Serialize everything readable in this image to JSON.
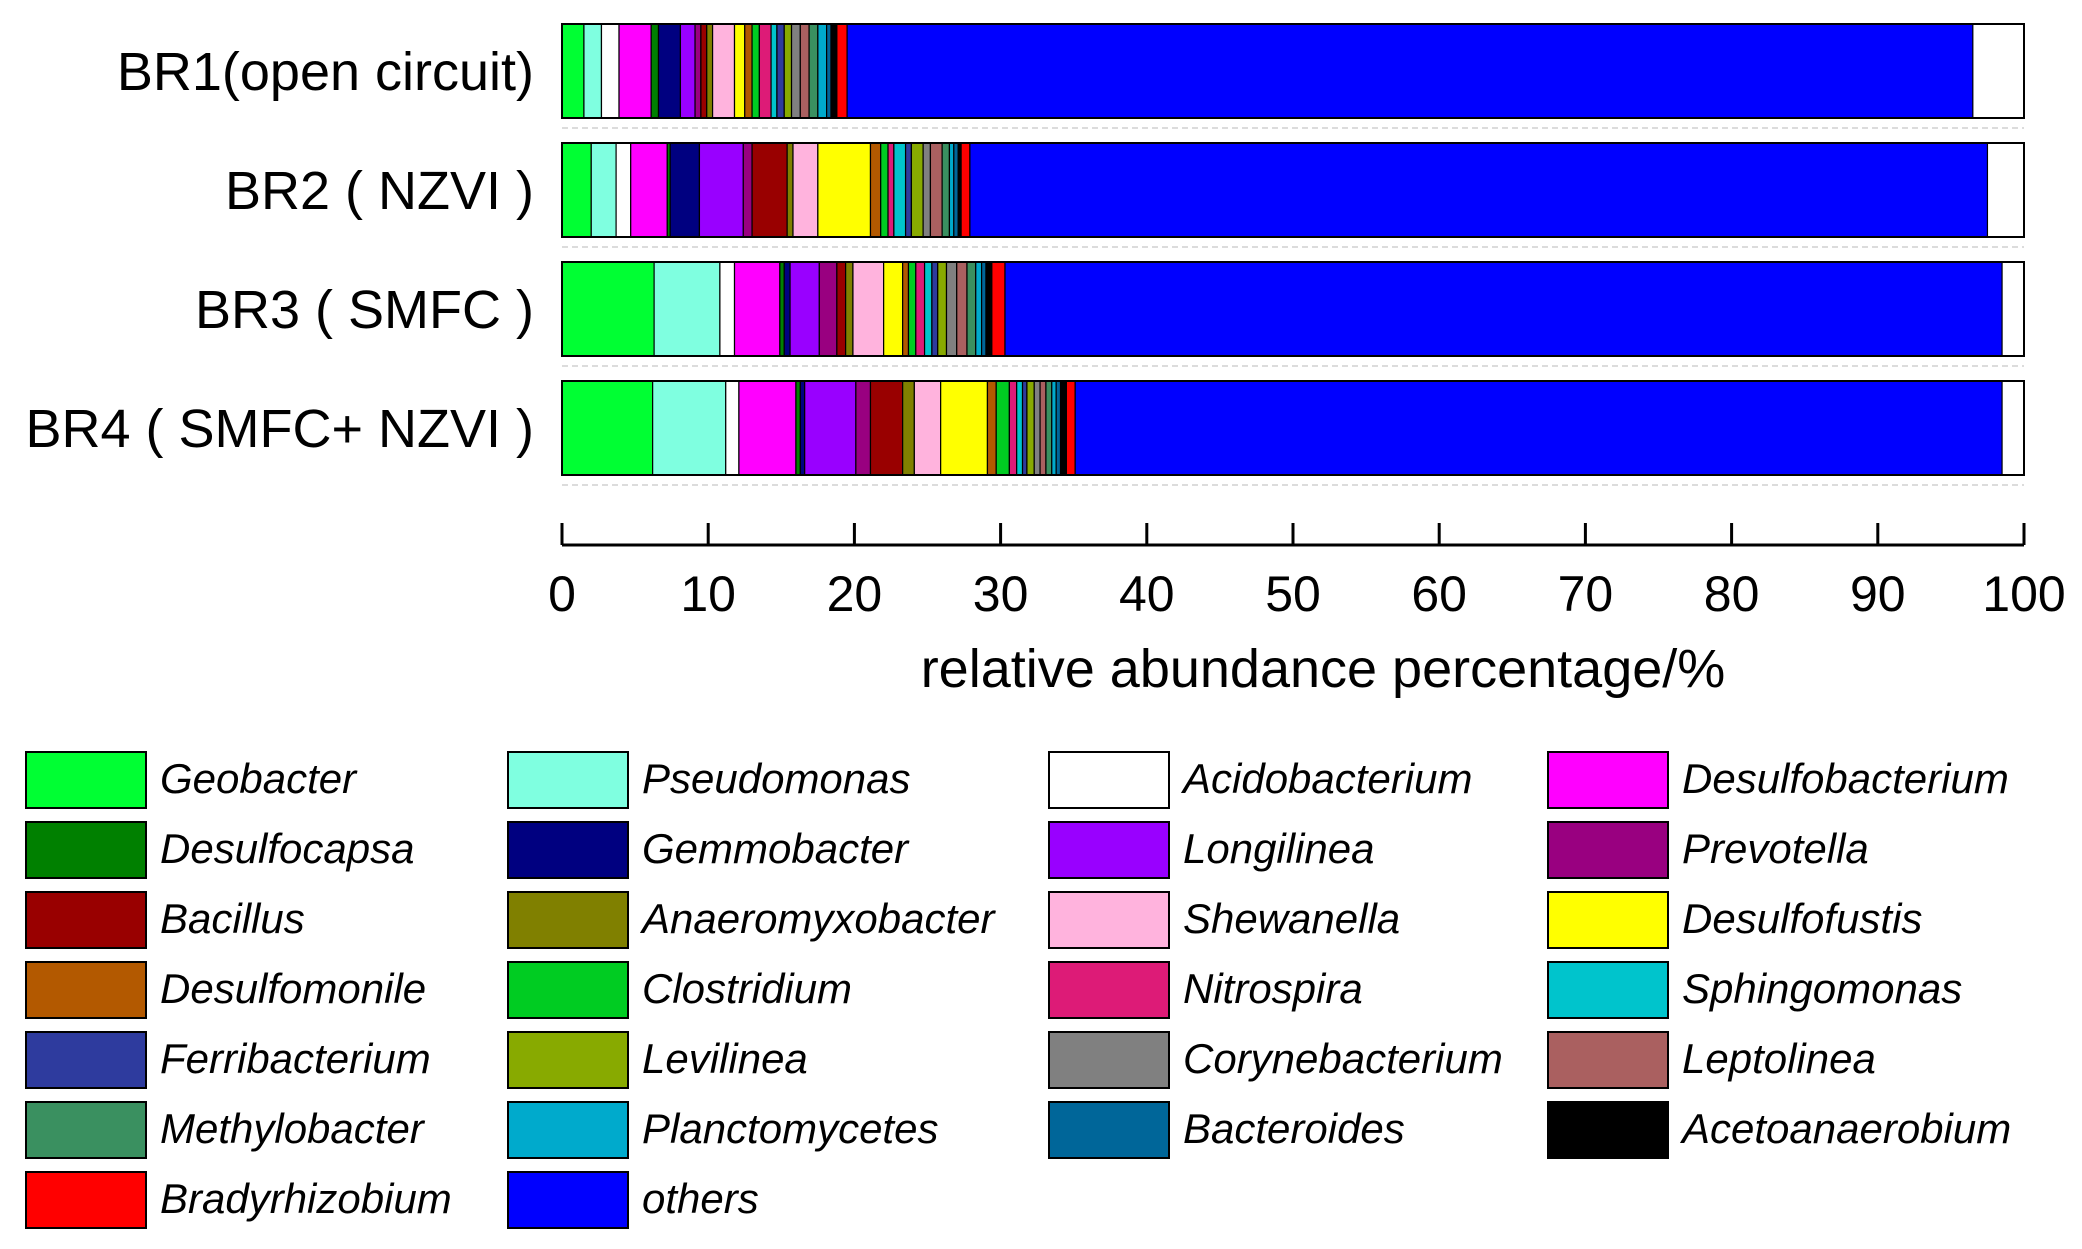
{
  "chart_data": {
    "type": "bar",
    "orientation": "horizontal",
    "stacked": true,
    "title": "",
    "xlabel": "relative abundance percentage/%",
    "ylabel": "",
    "xlim": [
      0,
      100
    ],
    "xticks": [
      "0",
      "10",
      "20",
      "30",
      "40",
      "50",
      "60",
      "70",
      "80",
      "90",
      "100"
    ],
    "categories": [
      "BR1(open circuit)",
      "BR2 ( NZVI )",
      "BR3 ( SMFC )",
      "BR4 ( SMFC+ NZVI )"
    ],
    "legend_position": "bottom",
    "series": [
      {
        "name": "Geobacter",
        "color": "#00FF33",
        "values": [
          1.5,
          2.0,
          6.3,
          6.2
        ]
      },
      {
        "name": "Pseudomonas",
        "color": "#7FFFE0",
        "values": [
          1.2,
          1.7,
          4.5,
          5.0
        ]
      },
      {
        "name": "Acidobacterium",
        "color": "#FFFFFF",
        "values": [
          1.2,
          1.0,
          1.0,
          0.9
        ]
      },
      {
        "name": "Desulfobacterium",
        "color": "#FF00FF",
        "values": [
          2.2,
          2.5,
          3.1,
          3.9
        ]
      },
      {
        "name": "Desulfocapsa",
        "color": "#008000",
        "values": [
          0.5,
          0.2,
          0.3,
          0.3
        ]
      },
      {
        "name": "Gemmobacter",
        "color": "#000080",
        "values": [
          1.5,
          2.0,
          0.4,
          0.3
        ]
      },
      {
        "name": "Longilinea",
        "color": "#9900FF",
        "values": [
          1.0,
          3.0,
          2.0,
          3.5
        ]
      },
      {
        "name": "Prevotella",
        "color": "#990080",
        "values": [
          0.4,
          0.6,
          1.2,
          1.0
        ]
      },
      {
        "name": "Bacillus",
        "color": "#990000",
        "values": [
          0.4,
          2.4,
          0.6,
          2.2
        ]
      },
      {
        "name": "Anaeromyxobacter",
        "color": "#808000",
        "values": [
          0.4,
          0.4,
          0.5,
          0.8
        ]
      },
      {
        "name": "Shewanella",
        "color": "#FFB3DD",
        "values": [
          1.5,
          1.7,
          2.1,
          1.8
        ]
      },
      {
        "name": "Desulfofustis",
        "color": "#FFFF00",
        "values": [
          0.7,
          3.6,
          1.3,
          3.2
        ]
      },
      {
        "name": "Desulfomonile",
        "color": "#B35900",
        "values": [
          0.5,
          0.7,
          0.4,
          0.6
        ]
      },
      {
        "name": "Clostridium",
        "color": "#00CC22",
        "values": [
          0.5,
          0.5,
          0.5,
          0.9
        ]
      },
      {
        "name": "Nitrospira",
        "color": "#DD1B77",
        "values": [
          0.8,
          0.4,
          0.6,
          0.5
        ]
      },
      {
        "name": "Sphingomonas",
        "color": "#00C4CC",
        "values": [
          0.4,
          0.8,
          0.5,
          0.4
        ]
      },
      {
        "name": "Ferribacterium",
        "color": "#2E3B9E",
        "values": [
          0.5,
          0.4,
          0.4,
          0.3
        ]
      },
      {
        "name": "Levilinea",
        "color": "#88AA00",
        "values": [
          0.5,
          0.8,
          0.6,
          0.5
        ]
      },
      {
        "name": "Corynebacterium",
        "color": "#808080",
        "values": [
          0.6,
          0.5,
          0.7,
          0.4
        ]
      },
      {
        "name": "Leptolinea",
        "color": "#AA6060",
        "values": [
          0.6,
          0.8,
          0.7,
          0.4
        ]
      },
      {
        "name": "Methylobacter",
        "color": "#3A9060",
        "values": [
          0.6,
          0.5,
          0.6,
          0.4
        ]
      },
      {
        "name": "Planctomycetes",
        "color": "#00AACC",
        "values": [
          0.6,
          0.3,
          0.4,
          0.3
        ]
      },
      {
        "name": "Bacteroides",
        "color": "#006699",
        "values": [
          0.3,
          0.3,
          0.3,
          0.3
        ]
      },
      {
        "name": "Acetoanaerobium",
        "color": "#000000",
        "values": [
          0.4,
          0.2,
          0.4,
          0.4
        ]
      },
      {
        "name": "Bradyrhizobium",
        "color": "#FF0000",
        "values": [
          0.7,
          0.6,
          0.9,
          0.6
        ]
      },
      {
        "name": "others",
        "color": "#0000FF",
        "values": [
          77.0,
          69.6,
          68.2,
          63.4
        ]
      }
    ]
  }
}
